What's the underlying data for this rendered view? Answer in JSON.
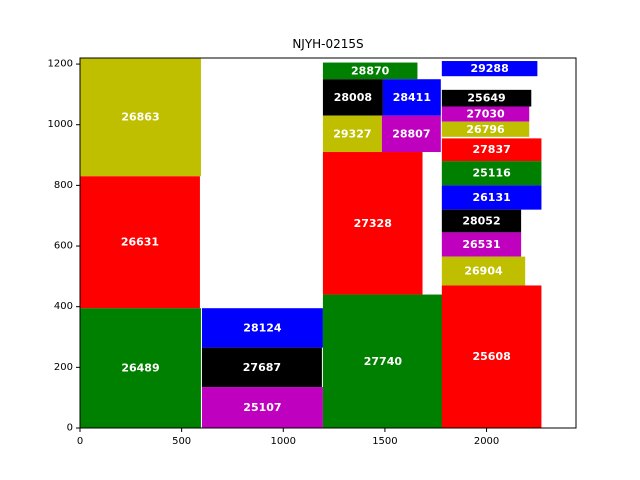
{
  "chart_data": {
    "type": "treemap",
    "title": "NJYH-0215S",
    "xlim": [
      0,
      2440
    ],
    "ylim": [
      0,
      1220
    ],
    "xticks": [
      0,
      500,
      1000,
      1500,
      2000
    ],
    "yticks": [
      0,
      200,
      400,
      600,
      800,
      1000,
      1200
    ],
    "grid": false,
    "colors": {
      "red": "#ff0000",
      "green": "#008000",
      "blue": "#0000ff",
      "black": "#000000",
      "magenta": "#bf00bf",
      "olive": "#bfbf00"
    },
    "rects": [
      {
        "label": "26863",
        "x": 0,
        "y": 830,
        "w": 595,
        "h": 390,
        "color": "olive"
      },
      {
        "label": "26631",
        "x": 0,
        "y": 395,
        "w": 590,
        "h": 435,
        "color": "red"
      },
      {
        "label": "26489",
        "x": 0,
        "y": 0,
        "w": 595,
        "h": 395,
        "color": "green"
      },
      {
        "label": "28124",
        "x": 600,
        "y": 265,
        "w": 595,
        "h": 130,
        "color": "blue"
      },
      {
        "label": "27687",
        "x": 600,
        "y": 135,
        "w": 590,
        "h": 130,
        "color": "black"
      },
      {
        "label": "25107",
        "x": 600,
        "y": 0,
        "w": 595,
        "h": 135,
        "color": "magenta"
      },
      {
        "label": "28870",
        "x": 1195,
        "y": 1150,
        "w": 465,
        "h": 55,
        "color": "green"
      },
      {
        "label": "28008",
        "x": 1195,
        "y": 1030,
        "w": 295,
        "h": 120,
        "color": "black"
      },
      {
        "label": "28411",
        "x": 1490,
        "y": 1030,
        "w": 285,
        "h": 120,
        "color": "blue"
      },
      {
        "label": "29327",
        "x": 1195,
        "y": 910,
        "w": 290,
        "h": 120,
        "color": "olive"
      },
      {
        "label": "28807",
        "x": 1485,
        "y": 910,
        "w": 290,
        "h": 120,
        "color": "magenta"
      },
      {
        "label": "27328",
        "x": 1195,
        "y": 440,
        "w": 490,
        "h": 470,
        "color": "red"
      },
      {
        "label": "27740",
        "x": 1195,
        "y": 0,
        "w": 590,
        "h": 440,
        "color": "green"
      },
      {
        "label": "29288",
        "x": 1780,
        "y": 1160,
        "w": 470,
        "h": 50,
        "color": "blue"
      },
      {
        "label": "25649",
        "x": 1780,
        "y": 1060,
        "w": 440,
        "h": 55,
        "color": "black"
      },
      {
        "label": "27030",
        "x": 1780,
        "y": 1010,
        "w": 430,
        "h": 50,
        "color": "magenta"
      },
      {
        "label": "26796",
        "x": 1780,
        "y": 960,
        "w": 430,
        "h": 50,
        "color": "olive"
      },
      {
        "label": "27837",
        "x": 1780,
        "y": 880,
        "w": 490,
        "h": 75,
        "color": "red"
      },
      {
        "label": "25116",
        "x": 1780,
        "y": 800,
        "w": 490,
        "h": 80,
        "color": "green"
      },
      {
        "label": "26131",
        "x": 1780,
        "y": 720,
        "w": 490,
        "h": 80,
        "color": "blue"
      },
      {
        "label": "28052",
        "x": 1780,
        "y": 645,
        "w": 390,
        "h": 75,
        "color": "black"
      },
      {
        "label": "26531",
        "x": 1780,
        "y": 565,
        "w": 390,
        "h": 80,
        "color": "magenta"
      },
      {
        "label": "26904",
        "x": 1780,
        "y": 470,
        "w": 410,
        "h": 95,
        "color": "olive"
      },
      {
        "label": "25608",
        "x": 1780,
        "y": 0,
        "w": 490,
        "h": 470,
        "color": "red"
      }
    ]
  }
}
